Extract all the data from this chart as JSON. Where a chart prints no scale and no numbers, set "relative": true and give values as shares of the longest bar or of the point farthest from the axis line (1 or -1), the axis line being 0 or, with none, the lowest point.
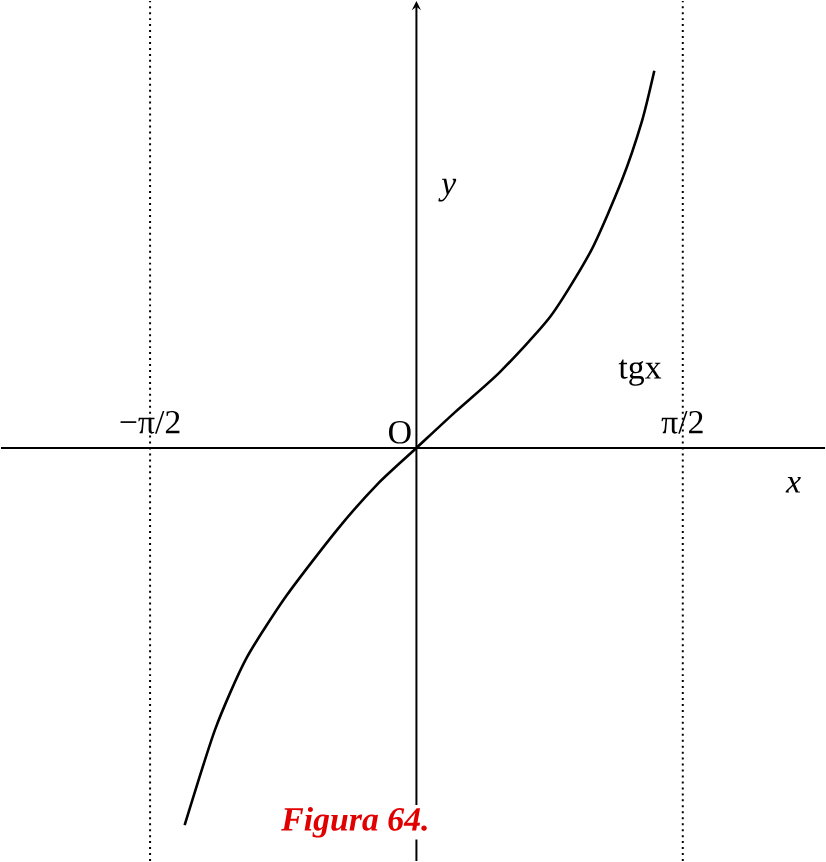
{
  "chart_data": {
    "type": "line",
    "relative": true,
    "xlabel": "*x*",
    "ylabel": "*y*",
    "xlim": [
      -2.45,
      2.41
    ],
    "xticks": [
      {
        "value": -1.5708,
        "label": "−π/2"
      },
      {
        "value": 1.5708,
        "label": "π/2"
      }
    ],
    "ref_lines": [
      {
        "axis": "x",
        "value": -1.5708,
        "line_style": "dotted"
      },
      {
        "axis": "x",
        "value": 1.5708,
        "line_style": "dotted"
      }
    ],
    "marker": "none",
    "line_style": "solid",
    "series": [
      {
        "name": "tgx",
        "color": "#000000",
        "x": [
          -1.367,
          -1.187,
          -1.007,
          -0.767,
          -0.468,
          -0.228,
          0,
          0.228,
          0.492,
          0.791,
          1.031,
          1.211,
          1.331,
          1.403
        ],
        "values": [
          -1,
          -0.746,
          -0.561,
          -0.392,
          -0.217,
          -0.095,
          0,
          0.095,
          0.201,
          0.349,
          0.524,
          0.709,
          0.868,
          1
        ]
      }
    ],
    "annotations": [
      {
        "text": "O",
        "x": 0,
        "y": 0
      },
      "Figura 64."
    ]
  }
}
